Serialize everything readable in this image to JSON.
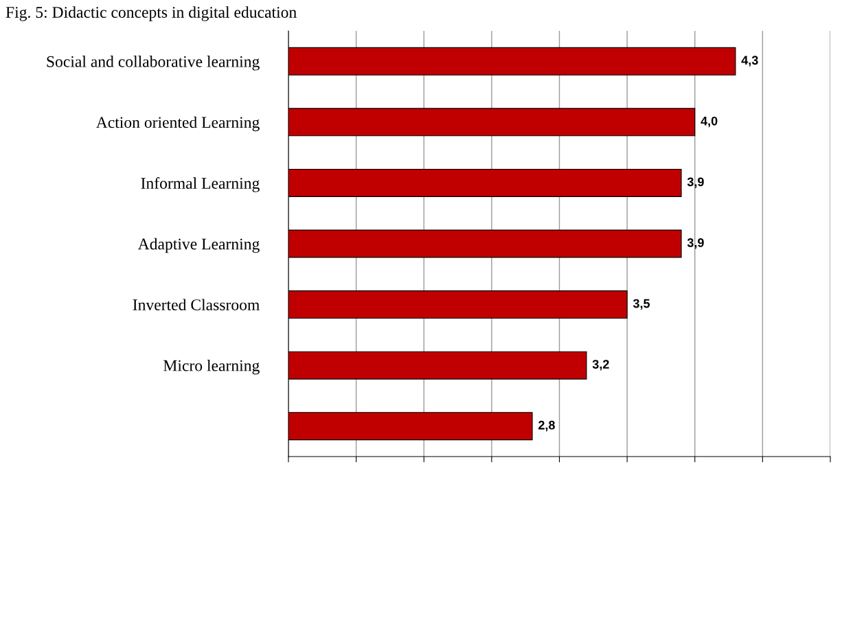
{
  "chart_data": {
    "type": "bar",
    "orientation": "horizontal",
    "title": "Fig. 5: Didactic concepts in digital education",
    "categories": [
      "Social and collaborative learning",
      "Action oriented Learning",
      "Informal Learning",
      "Adaptive Learning",
      "Inverted Classroom",
      "Micro learning",
      null
    ],
    "values": [
      4.3,
      4.0,
      3.9,
      3.9,
      3.5,
      3.2,
      2.8
    ],
    "value_labels": [
      "4,3",
      "4,0",
      "3,9",
      "3,9",
      "3,5",
      "3,2",
      "2,8"
    ],
    "color": "#c00000",
    "xlim": [
      1,
      5
    ],
    "xticks": [
      {
        "value": 1,
        "label": null
      },
      {
        "value": 1.5,
        "label": null
      },
      {
        "value": 2,
        "label": null
      },
      {
        "value": 2.5,
        "label": null
      },
      {
        "value": 3,
        "label": null
      },
      {
        "value": 3.5,
        "label": null
      },
      {
        "value": 4,
        "label": null
      },
      {
        "value": 4.5,
        "label": null
      },
      {
        "value": 5,
        "label": null
      }
    ],
    "grid": "x",
    "tick_labels": "y",
    "legend": false
  }
}
